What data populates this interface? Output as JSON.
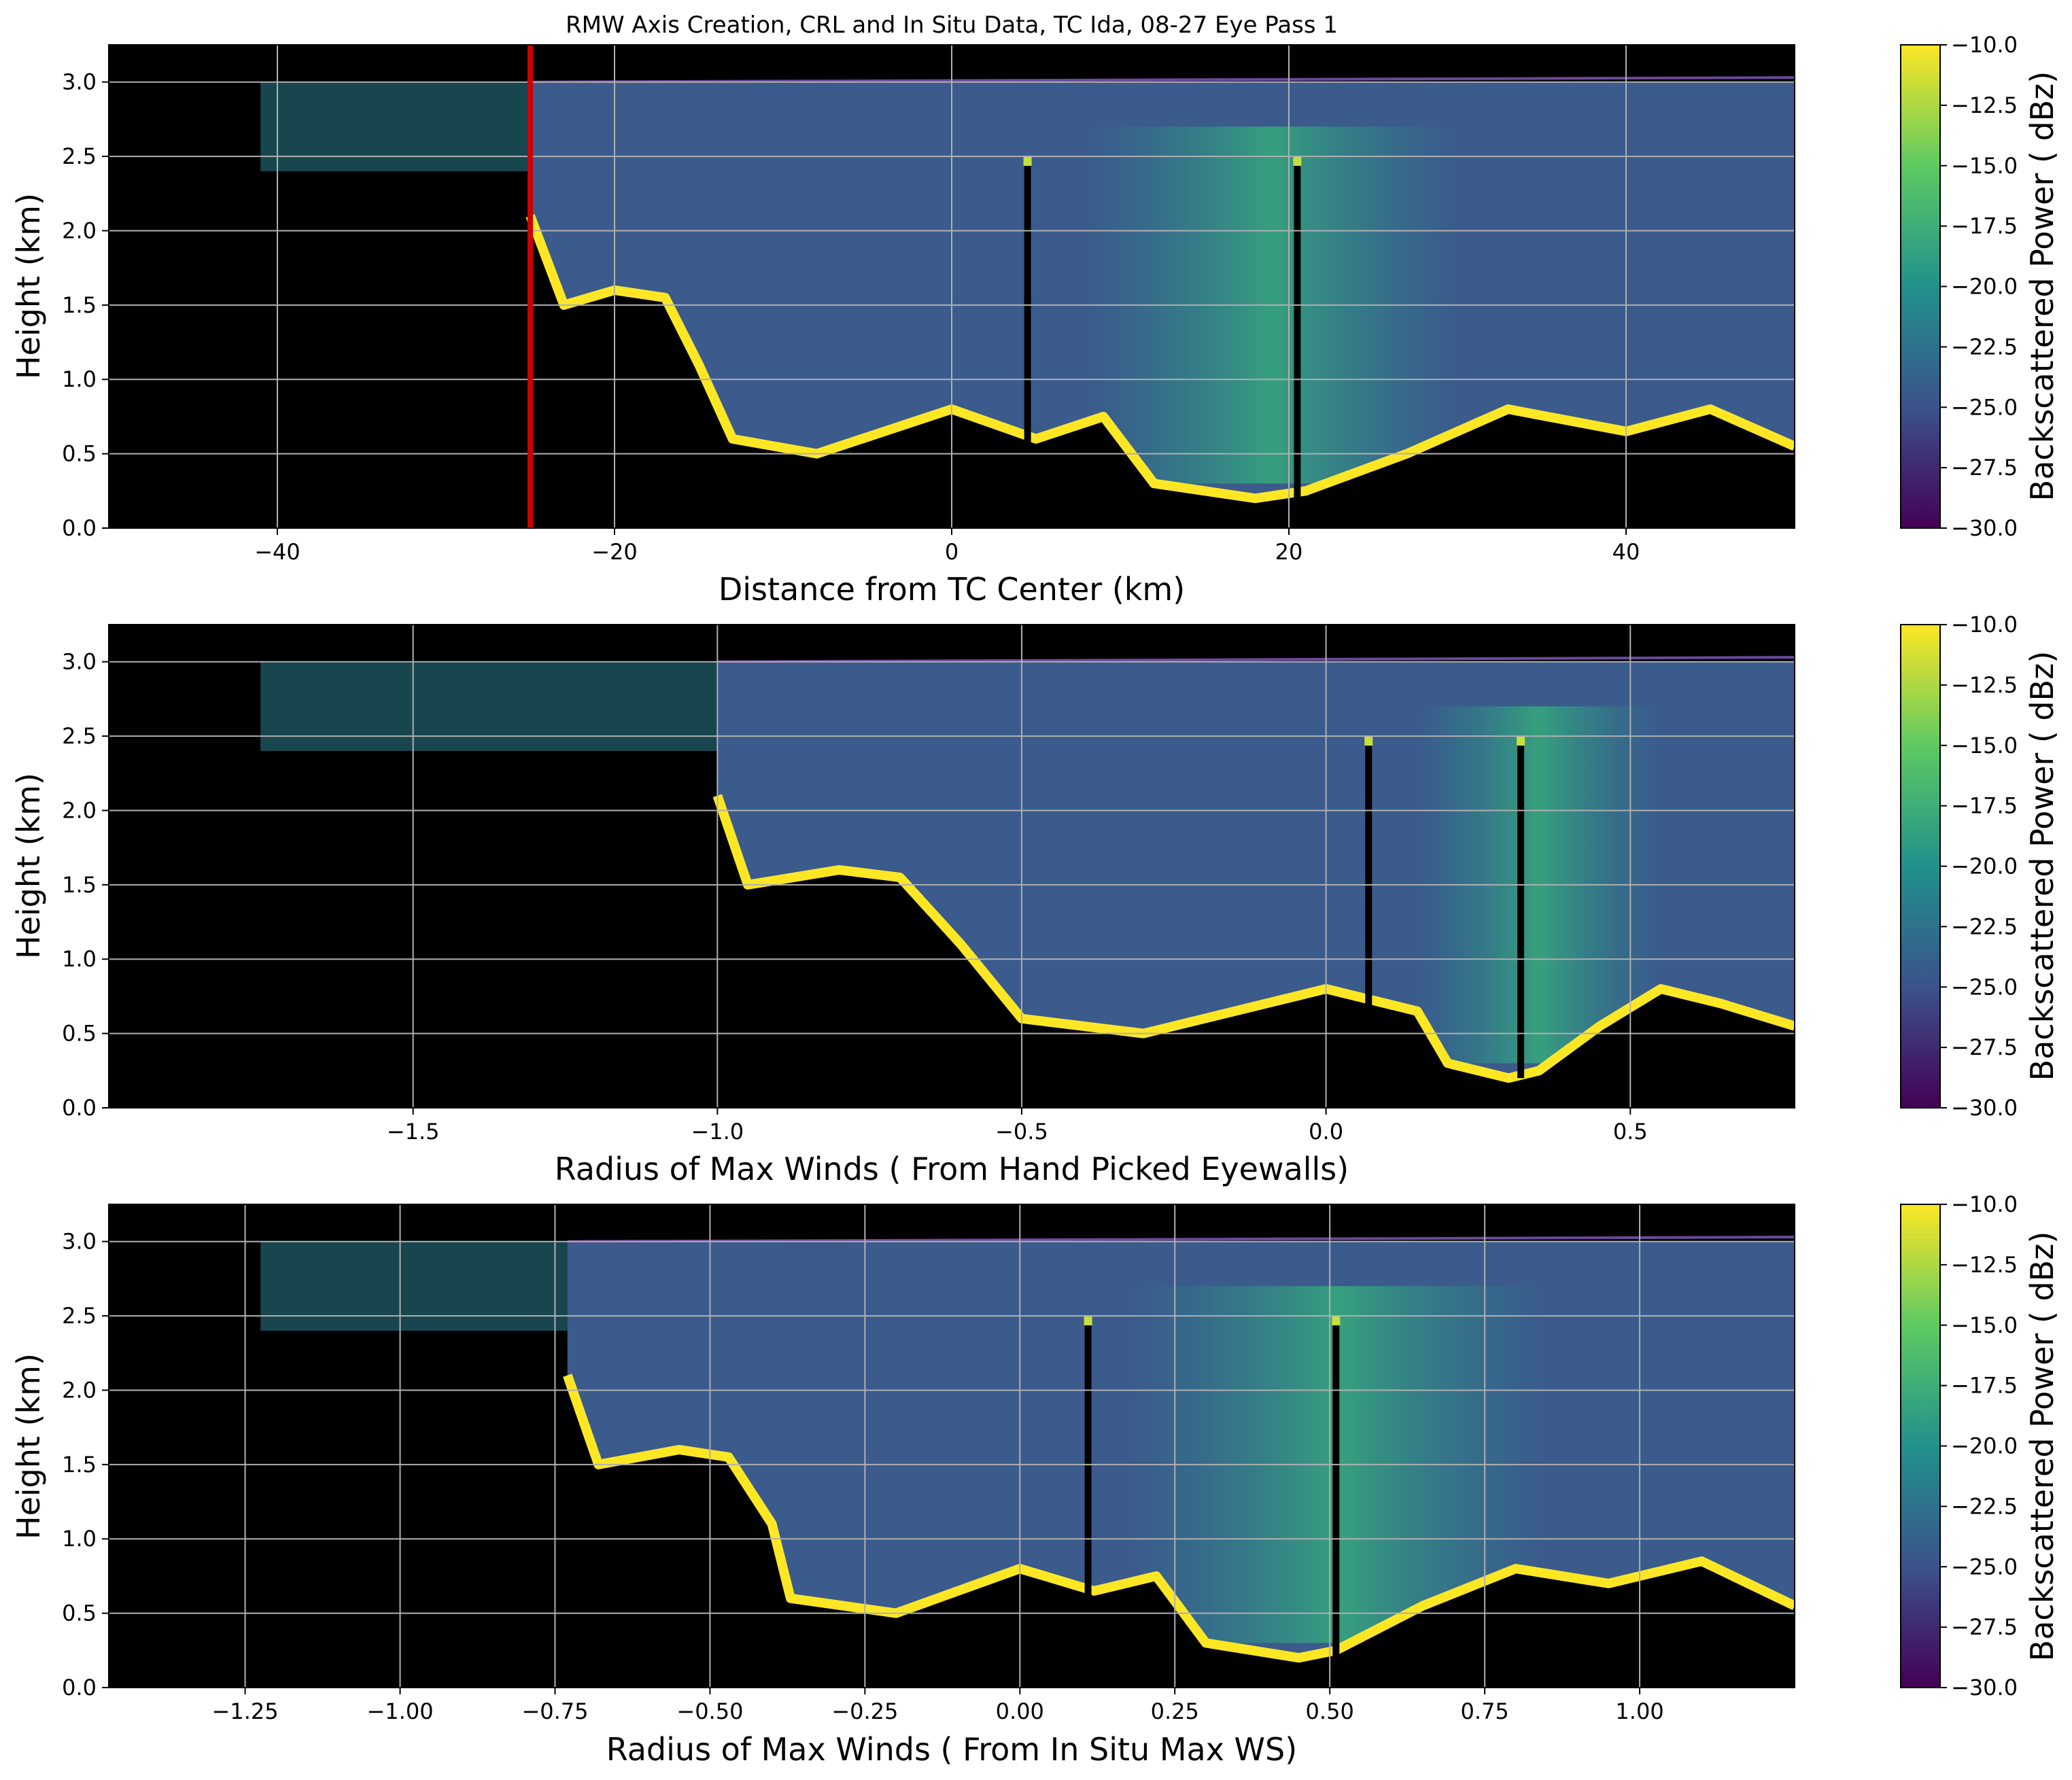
{
  "figure_title": "RMW Axis Creation, CRL and In Situ Data, TC Ida, 08-27 Eye Pass 1",
  "colors": {
    "background": "#000000",
    "grid": "#b0b0b0",
    "rmw_marker": "#cc0000",
    "colormap": [
      "#440154",
      "#3b528b",
      "#21918c",
      "#5ec962",
      "#fde725"
    ]
  },
  "chart_data": [
    {
      "type": "heatmap",
      "title": "RMW Axis Creation, CRL and In Situ Data, TC Ida, 08-27 Eye Pass 1",
      "xlabel": "Distance from TC Center (km)",
      "ylabel": "Height (km)",
      "xlim": [
        -50,
        50
      ],
      "ylim": [
        0,
        3.25
      ],
      "xticks": [
        -40,
        -20,
        0,
        20,
        40
      ],
      "xtick_labels": [
        "−40",
        "−20",
        "0",
        "20",
        "40"
      ],
      "yticks": [
        0.0,
        0.5,
        1.0,
        1.5,
        2.0,
        2.5,
        3.0
      ],
      "ytick_labels": [
        "0.0",
        "0.5",
        "1.0",
        "1.5",
        "2.0",
        "2.5",
        "3.0"
      ],
      "grid": true,
      "rmw_line_x": -25,
      "colorbar": {
        "label": "Backscattered Power ( dBz)",
        "range": [
          -30,
          -10
        ],
        "ticks": [
          "−10.0",
          "−12.5",
          "−15.0",
          "−17.5",
          "−20.0",
          "−22.5",
          "−25.0",
          "−27.5",
          "−30.0"
        ]
      },
      "profile": {
        "eyewall_left_x": -25,
        "cloud_top_km": 3.0,
        "ground_echo_km": [
          [
            -25,
            2.1
          ],
          [
            -23,
            1.5
          ],
          [
            -20,
            1.6
          ],
          [
            -17,
            1.55
          ],
          [
            -15,
            1.1
          ],
          [
            -13,
            0.6
          ],
          [
            -8,
            0.5
          ],
          [
            0,
            0.8
          ],
          [
            5,
            0.6
          ],
          [
            9,
            0.75
          ],
          [
            12,
            0.3
          ],
          [
            18,
            0.2
          ],
          [
            21,
            0.25
          ],
          [
            27,
            0.5
          ],
          [
            33,
            0.8
          ],
          [
            40,
            0.65
          ],
          [
            45,
            0.8
          ],
          [
            50,
            0.55
          ]
        ],
        "spikes_x": [
          4.5,
          20.5
        ],
        "bright_band_x": [
          8,
          30
        ]
      }
    },
    {
      "type": "heatmap",
      "xlabel": "Radius of Max Winds ( From Hand Picked Eyewalls)",
      "ylabel": "Height (km)",
      "xlim": [
        -2.0,
        0.77
      ],
      "ylim": [
        0,
        3.25
      ],
      "xticks": [
        -1.5,
        -1.0,
        -0.5,
        0.0,
        0.5
      ],
      "xtick_labels": [
        "−1.5",
        "−1.0",
        "−0.5",
        "0.0",
        "0.5"
      ],
      "yticks": [
        0.0,
        0.5,
        1.0,
        1.5,
        2.0,
        2.5,
        3.0
      ],
      "ytick_labels": [
        "0.0",
        "0.5",
        "1.0",
        "1.5",
        "2.0",
        "2.5",
        "3.0"
      ],
      "grid": true,
      "colorbar": {
        "label": "Backscattered Power ( dBz)",
        "range": [
          -30,
          -10
        ],
        "ticks": [
          "−10.0",
          "−12.5",
          "−15.0",
          "−17.5",
          "−20.0",
          "−22.5",
          "−25.0",
          "−27.5",
          "−30.0"
        ]
      },
      "profile": {
        "eyewall_left_x": -1.0,
        "cloud_top_km": 3.0,
        "ground_echo_km": [
          [
            -1.0,
            2.1
          ],
          [
            -0.95,
            1.5
          ],
          [
            -0.8,
            1.6
          ],
          [
            -0.7,
            1.55
          ],
          [
            -0.6,
            1.1
          ],
          [
            -0.5,
            0.6
          ],
          [
            -0.3,
            0.5
          ],
          [
            0.0,
            0.8
          ],
          [
            0.15,
            0.65
          ],
          [
            0.2,
            0.3
          ],
          [
            0.3,
            0.2
          ],
          [
            0.35,
            0.25
          ],
          [
            0.45,
            0.55
          ],
          [
            0.55,
            0.8
          ],
          [
            0.65,
            0.7
          ],
          [
            0.77,
            0.55
          ]
        ],
        "spikes_x": [
          0.07,
          0.32
        ],
        "bright_band_x": [
          0.15,
          0.55
        ]
      }
    },
    {
      "type": "heatmap",
      "xlabel": "Radius of Max Winds ( From In Situ Max WS)",
      "ylabel": "Height (km)",
      "xlim": [
        -1.47,
        1.25
      ],
      "ylim": [
        0,
        3.25
      ],
      "xticks": [
        -1.25,
        -1.0,
        -0.75,
        -0.5,
        -0.25,
        0.0,
        0.25,
        0.5,
        0.75,
        1.0
      ],
      "xtick_labels": [
        "−1.25",
        "−1.00",
        "−0.75",
        "−0.50",
        "−0.25",
        "0.00",
        "0.25",
        "0.50",
        "0.75",
        "1.00"
      ],
      "yticks": [
        0.0,
        0.5,
        1.0,
        1.5,
        2.0,
        2.5,
        3.0
      ],
      "ytick_labels": [
        "0.0",
        "0.5",
        "1.0",
        "1.5",
        "2.0",
        "2.5",
        "3.0"
      ],
      "grid": true,
      "colorbar": {
        "label": "Backscattered Power ( dBz)",
        "range": [
          -30,
          -10
        ],
        "ticks": [
          "−10.0",
          "−12.5",
          "−15.0",
          "−17.5",
          "−20.0",
          "−22.5",
          "−25.0",
          "−27.5",
          "−30.0"
        ]
      },
      "profile": {
        "eyewall_left_x": -0.73,
        "cloud_top_km": 3.0,
        "ground_echo_km": [
          [
            -0.73,
            2.1
          ],
          [
            -0.68,
            1.5
          ],
          [
            -0.55,
            1.6
          ],
          [
            -0.47,
            1.55
          ],
          [
            -0.4,
            1.1
          ],
          [
            -0.37,
            0.6
          ],
          [
            -0.2,
            0.5
          ],
          [
            0.0,
            0.8
          ],
          [
            0.12,
            0.65
          ],
          [
            0.22,
            0.75
          ],
          [
            0.3,
            0.3
          ],
          [
            0.45,
            0.2
          ],
          [
            0.51,
            0.25
          ],
          [
            0.65,
            0.55
          ],
          [
            0.8,
            0.8
          ],
          [
            0.95,
            0.7
          ],
          [
            1.1,
            0.85
          ],
          [
            1.25,
            0.55
          ]
        ],
        "spikes_x": [
          0.11,
          0.51
        ],
        "bright_band_x": [
          0.18,
          0.85
        ]
      }
    }
  ]
}
